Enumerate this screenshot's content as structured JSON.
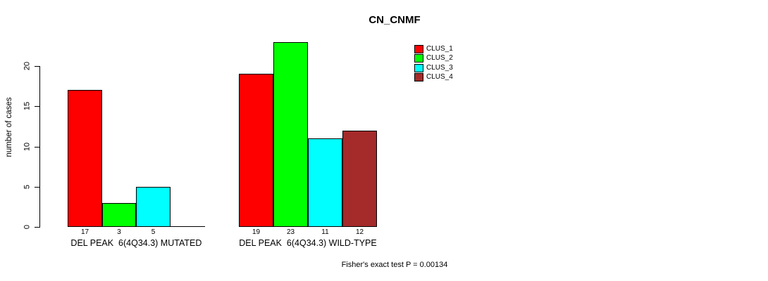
{
  "chart_data": {
    "type": "bar",
    "title": "CN_CNMF",
    "ylabel": "number of cases",
    "xlabel": "",
    "categories": [
      "DEL PEAK  6(4Q34.3) MUTATED",
      "DEL PEAK  6(4Q34.3) WILD-TYPE"
    ],
    "series": [
      {
        "name": "CLUS_1",
        "color": "#ff0000",
        "values": [
          17,
          19
        ]
      },
      {
        "name": "CLUS_2",
        "color": "#00ff00",
        "values": [
          3,
          23
        ]
      },
      {
        "name": "CLUS_3",
        "color": "#00ffff",
        "values": [
          5,
          11
        ]
      },
      {
        "name": "CLUS_4",
        "color": "#a52a2a",
        "values": [
          0,
          12
        ]
      }
    ],
    "yticks": [
      0,
      5,
      10,
      15,
      20
    ],
    "ylim": [
      0,
      23.5
    ],
    "grid": false,
    "bar_borders": true,
    "zero_value_bars_drawn_as_line": true,
    "value_labels_under_bars": true,
    "legend_position": "top-right",
    "annotation": "Fisher's exact test P = 0.00134"
  }
}
